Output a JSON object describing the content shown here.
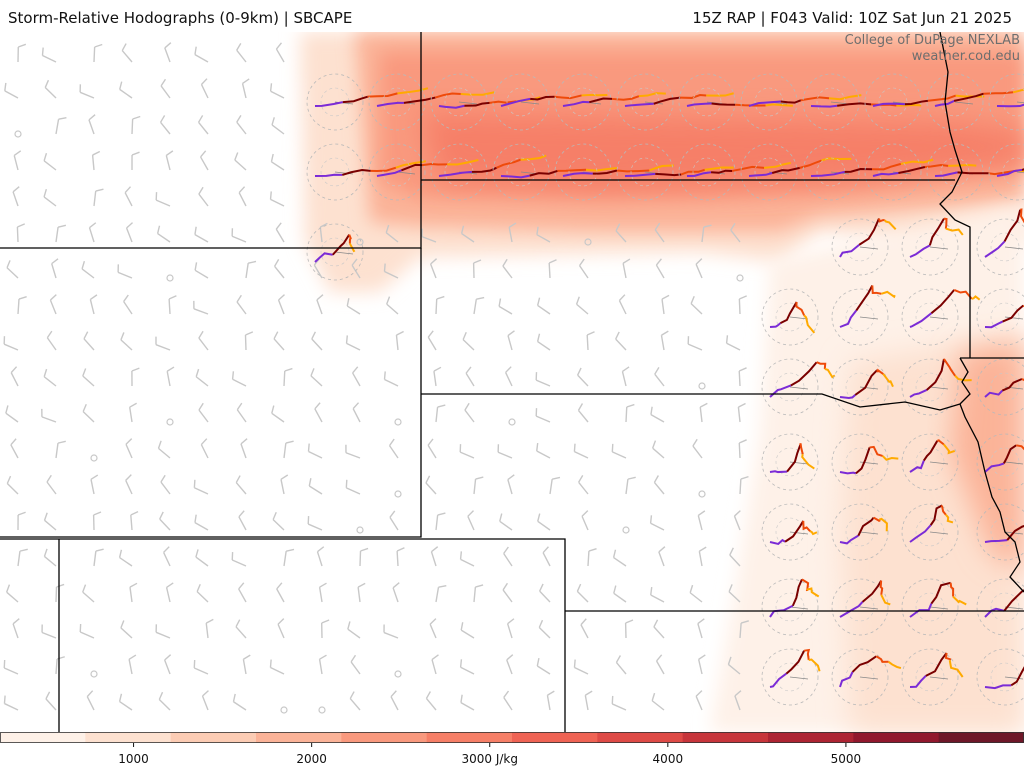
{
  "header": {
    "title": "Storm-Relative Hodographs (0-9km) | SBCAPE",
    "run_info": "15Z RAP | F043 Valid: 10Z Sat Jun 21 2025"
  },
  "credit": {
    "line1": "College of DuPage NEXLAB",
    "line2": "weather.cod.edu"
  },
  "colorbar": {
    "unit": "J/kg",
    "ticks": [
      {
        "value": 1000,
        "label": "1000"
      },
      {
        "value": 2000,
        "label": "2000"
      },
      {
        "value": 3000,
        "label": "3000 J/kg"
      },
      {
        "value": 4000,
        "label": "4000"
      },
      {
        "value": 5000,
        "label": "5000"
      }
    ],
    "range": [
      250,
      6000
    ],
    "colors": [
      "#fef1e8",
      "#fde1d0",
      "#fcccb4",
      "#fbb398",
      "#f9997e",
      "#f67f67",
      "#ef6354",
      "#de4a46",
      "#c7353b",
      "#ad2433",
      "#91182d",
      "#6e1728"
    ]
  },
  "map_colors": {
    "border": "#000000",
    "barb": "#c8c8c8",
    "hodo_levels": [
      "#7b2bd6",
      "#7a0000",
      "#ee4a0a",
      "#ffaa00"
    ]
  }
}
